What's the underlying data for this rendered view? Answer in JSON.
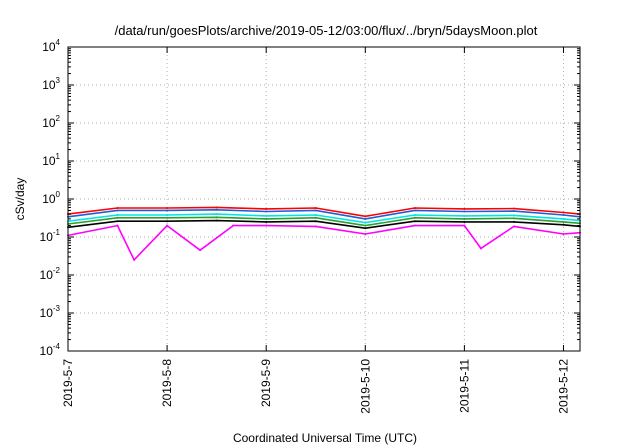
{
  "chart_data": {
    "type": "line",
    "title": "/data/run/goesPlots/archive/2019-05-12/03:00/flux/../bryn/5daysMoon.plot",
    "xlabel": "Coordinated Universal Time (UTC)",
    "ylabel": "cSv/day",
    "yscale": "log",
    "ylim": [
      0.0001,
      10000
    ],
    "xlim": [
      "2019-05-07",
      "2019-05-12 04:00"
    ],
    "grid": true,
    "y_ticks": [
      {
        "base": "10",
        "exp": "-4"
      },
      {
        "base": "10",
        "exp": "-3"
      },
      {
        "base": "10",
        "exp": "-2"
      },
      {
        "base": "10",
        "exp": "-1"
      },
      {
        "base": "10",
        "exp": "0"
      },
      {
        "base": "10",
        "exp": "1"
      },
      {
        "base": "10",
        "exp": "2"
      },
      {
        "base": "10",
        "exp": "3"
      },
      {
        "base": "10",
        "exp": "4"
      }
    ],
    "x_ticks": [
      "2019-5-7",
      "2019-5-8",
      "2019-5-9",
      "2019-5-10",
      "2019-5-11",
      "2019-5-12"
    ],
    "series": [
      {
        "color": "#ff00ff",
        "x": [
          "2019-05-07 00:00",
          "2019-05-07 12:00",
          "2019-05-07 16:00",
          "2019-05-08 00:00",
          "2019-05-08 08:00",
          "2019-05-08 16:00",
          "2019-05-09 00:00",
          "2019-05-09 12:00",
          "2019-05-10 00:00",
          "2019-05-10 12:00",
          "2019-05-11 00:00",
          "2019-05-11 04:00",
          "2019-05-11 12:00",
          "2019-05-12 00:00",
          "2019-05-12 04:00"
        ],
        "values": [
          0.11,
          0.2,
          0.025,
          0.2,
          0.045,
          0.2,
          0.2,
          0.19,
          0.12,
          0.2,
          0.2,
          0.05,
          0.19,
          0.12,
          0.13
        ]
      },
      {
        "color": "#000000",
        "x": [
          "2019-05-07 00:00",
          "2019-05-07 12:00",
          "2019-05-08 00:00",
          "2019-05-08 12:00",
          "2019-05-09 00:00",
          "2019-05-09 12:00",
          "2019-05-10 00:00",
          "2019-05-10 12:00",
          "2019-05-11 00:00",
          "2019-05-11 12:00",
          "2019-05-12 00:00",
          "2019-05-12 04:00"
        ],
        "values": [
          0.18,
          0.26,
          0.26,
          0.27,
          0.25,
          0.26,
          0.17,
          0.26,
          0.25,
          0.25,
          0.21,
          0.19
        ]
      },
      {
        "color": "#2ca02c",
        "x": [
          "2019-05-07 00:00",
          "2019-05-07 12:00",
          "2019-05-08 00:00",
          "2019-05-08 12:00",
          "2019-05-09 00:00",
          "2019-05-09 12:00",
          "2019-05-10 00:00",
          "2019-05-10 12:00",
          "2019-05-11 00:00",
          "2019-05-11 12:00",
          "2019-05-12 00:00",
          "2019-05-12 04:00"
        ],
        "values": [
          0.22,
          0.32,
          0.32,
          0.33,
          0.3,
          0.32,
          0.2,
          0.32,
          0.3,
          0.31,
          0.25,
          0.23
        ]
      },
      {
        "color": "#00e5e5",
        "x": [
          "2019-05-07 00:00",
          "2019-05-07 12:00",
          "2019-05-08 00:00",
          "2019-05-08 12:00",
          "2019-05-09 00:00",
          "2019-05-09 12:00",
          "2019-05-10 00:00",
          "2019-05-10 12:00",
          "2019-05-11 00:00",
          "2019-05-11 12:00",
          "2019-05-12 00:00",
          "2019-05-12 04:00"
        ],
        "values": [
          0.26,
          0.38,
          0.38,
          0.4,
          0.36,
          0.38,
          0.24,
          0.38,
          0.36,
          0.37,
          0.3,
          0.27
        ]
      },
      {
        "color": "#1f5fd6",
        "x": [
          "2019-05-07 00:00",
          "2019-05-07 12:00",
          "2019-05-08 00:00",
          "2019-05-08 12:00",
          "2019-05-09 00:00",
          "2019-05-09 12:00",
          "2019-05-10 00:00",
          "2019-05-10 12:00",
          "2019-05-11 00:00",
          "2019-05-11 12:00",
          "2019-05-12 00:00",
          "2019-05-12 04:00"
        ],
        "values": [
          0.34,
          0.5,
          0.5,
          0.52,
          0.47,
          0.5,
          0.3,
          0.5,
          0.47,
          0.48,
          0.38,
          0.34
        ]
      },
      {
        "color": "#ff0000",
        "x": [
          "2019-05-07 00:00",
          "2019-05-07 12:00",
          "2019-05-08 00:00",
          "2019-05-08 12:00",
          "2019-05-09 00:00",
          "2019-05-09 12:00",
          "2019-05-10 00:00",
          "2019-05-10 12:00",
          "2019-05-11 00:00",
          "2019-05-11 12:00",
          "2019-05-12 00:00",
          "2019-05-12 04:00"
        ],
        "values": [
          0.4,
          0.58,
          0.58,
          0.6,
          0.55,
          0.58,
          0.35,
          0.58,
          0.55,
          0.56,
          0.44,
          0.4
        ]
      }
    ]
  }
}
